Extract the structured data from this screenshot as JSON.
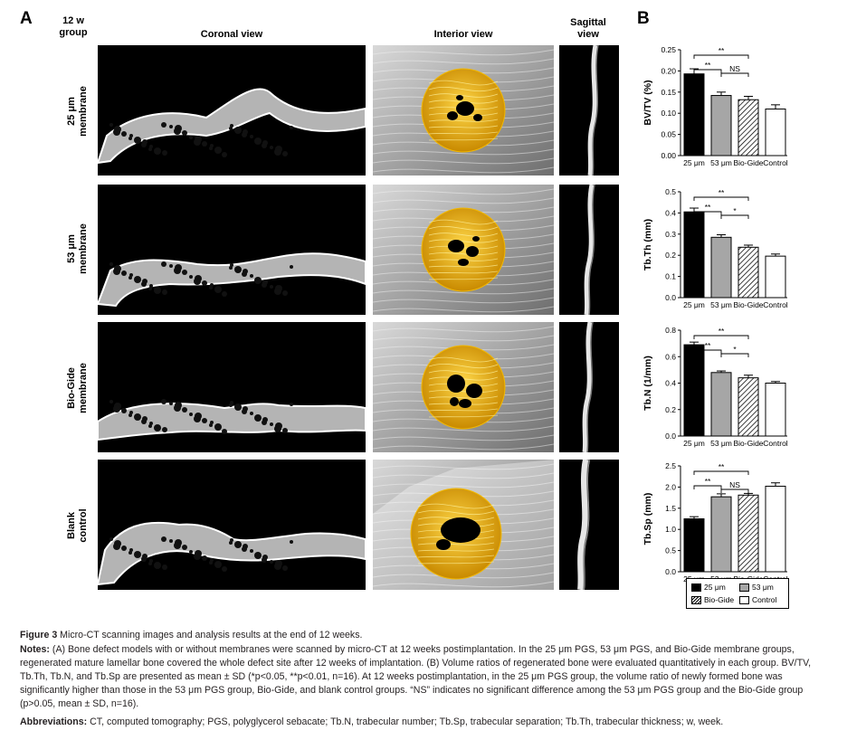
{
  "panel_a": {
    "letter": "A",
    "group_label_line1": "12 w",
    "group_label_line2": "group",
    "headers": {
      "coronal": "Coronal view",
      "interior": "Interior view",
      "sagittal_line1": "Sagittal",
      "sagittal_line2": "view"
    },
    "rows": [
      {
        "line1": "25 μm",
        "line2": "membrane"
      },
      {
        "line1": "53 μm",
        "line2": "membrane"
      },
      {
        "line1": "Bio-Gide",
        "line2": "membrane"
      },
      {
        "line1": "Blank",
        "line2": "control"
      }
    ]
  },
  "panel_b": {
    "letter": "B"
  },
  "chart_data": [
    {
      "type": "bar",
      "ylabel": "BV/TV (%)",
      "categories": [
        "25 μm",
        "53 μm",
        "Bio-Gide",
        "Control"
      ],
      "values": [
        0.193,
        0.142,
        0.132,
        0.11
      ],
      "errors": [
        0.012,
        0.008,
        0.008,
        0.01
      ],
      "ylim": [
        0,
        0.25
      ],
      "yticks": [
        "0.00",
        "0.05",
        "0.10",
        "0.15",
        "0.20",
        "0.25"
      ],
      "significance": [
        {
          "from": 0,
          "to": 1,
          "label": "**"
        },
        {
          "from": 1,
          "to": 2,
          "label": "NS"
        },
        {
          "from": 0,
          "to": 2,
          "label": "**"
        }
      ]
    },
    {
      "type": "bar",
      "ylabel": "Tb.Th (mm)",
      "categories": [
        "25 μm",
        "53 μm",
        "Bio-Gide",
        "Control"
      ],
      "values": [
        0.405,
        0.285,
        0.238,
        0.196
      ],
      "errors": [
        0.018,
        0.012,
        0.01,
        0.01
      ],
      "ylim": [
        0,
        0.5
      ],
      "yticks": [
        "0.0",
        "0.1",
        "0.2",
        "0.3",
        "0.4",
        "0.5"
      ],
      "significance": [
        {
          "from": 0,
          "to": 1,
          "label": "**"
        },
        {
          "from": 1,
          "to": 2,
          "label": "*"
        },
        {
          "from": 0,
          "to": 2,
          "label": "**"
        }
      ]
    },
    {
      "type": "bar",
      "ylabel": "Tb.N (1/mm)",
      "categories": [
        "25 μm",
        "53 μm",
        "Bio-Gide",
        "Control"
      ],
      "values": [
        0.69,
        0.48,
        0.44,
        0.4
      ],
      "errors": [
        0.02,
        0.012,
        0.02,
        0.012
      ],
      "ylim": [
        0,
        0.8
      ],
      "yticks": [
        "0.0",
        "0.2",
        "0.4",
        "0.6",
        "0.8"
      ],
      "significance": [
        {
          "from": 0,
          "to": 1,
          "label": "**"
        },
        {
          "from": 1,
          "to": 2,
          "label": "*"
        },
        {
          "from": 0,
          "to": 2,
          "label": "**"
        }
      ]
    },
    {
      "type": "bar",
      "ylabel": "Tb.Sp (mm)",
      "categories": [
        "25 μm",
        "53 μm",
        "Bio-Gide",
        "Control"
      ],
      "values": [
        1.25,
        1.77,
        1.81,
        2.02
      ],
      "errors": [
        0.05,
        0.07,
        0.04,
        0.08
      ],
      "ylim": [
        0,
        2.5
      ],
      "yticks": [
        "0.0",
        "0.5",
        "1.0",
        "1.5",
        "2.0",
        "2.5"
      ],
      "significance": [
        {
          "from": 0,
          "to": 1,
          "label": "**"
        },
        {
          "from": 1,
          "to": 2,
          "label": "NS"
        },
        {
          "from": 0,
          "to": 2,
          "label": "**"
        }
      ]
    }
  ],
  "legend": [
    {
      "label": "25 μm",
      "fill": "#000000"
    },
    {
      "label": "53 μm",
      "fill": "#a6a6a6"
    },
    {
      "label": "Bio-Gide",
      "fill": "hatch"
    },
    {
      "label": "Control",
      "fill": "#ffffff"
    }
  ],
  "caption": {
    "figure_label": "Figure 3",
    "figure_title": "Micro-CT scanning images and analysis results at the end of 12 weeks.",
    "notes_label": "Notes:",
    "notes_text": "(A) Bone defect models with or without membranes were scanned by micro-CT at 12 weeks postimplantation. In the 25 μm PGS, 53 μm PGS, and Bio-Gide membrane groups, regenerated mature lamellar bone covered the whole defect site after 12 weeks of implantation. (B) Volume ratios of regenerated bone were evaluated quantitatively in each group. BV/TV, Tb.Th, Tb.N, and Tb.Sp are presented as mean ± SD (*p<0.05, **p<0.01, n=16). At 12 weeks postimplantation, in the 25 μm PGS group, the volume ratio of newly formed bone was significantly higher than those in the 53 μm PGS group, Bio-Gide, and blank control groups. “NS” indicates no significant difference among the 53 μm PGS group and the Bio-Gide group (p>0.05, mean ± SD, n=16).",
    "abbr_label": "Abbreviations:",
    "abbr_text": "CT, computed tomography; PGS, polyglycerol sebacate; Tb.N, trabecular number; Tb.Sp, trabecular separation; Tb.Th, trabecular thickness; w, week."
  },
  "colors": {
    "bar_53": "#a6a6a6",
    "gold": "#f2b800",
    "gold_dark": "#c98a00"
  }
}
